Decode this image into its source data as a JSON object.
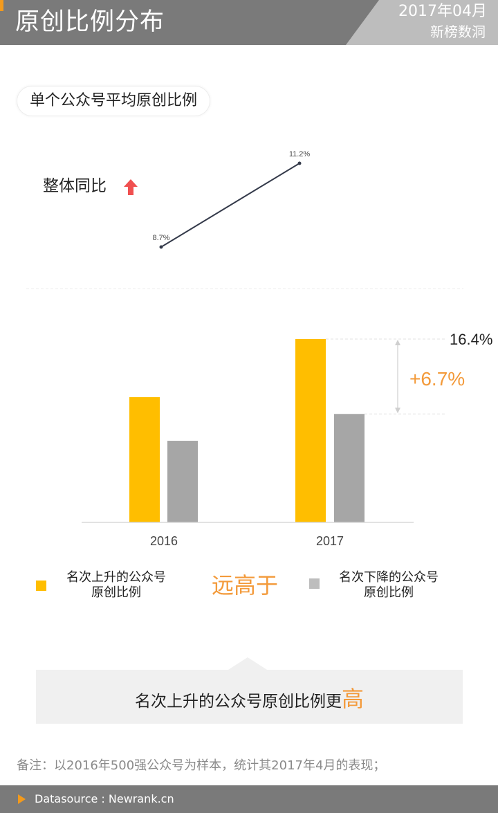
{
  "header": {
    "title": "原创比例分布",
    "date": "2017年04月",
    "brand": "新榜数洞"
  },
  "subtitle": "单个公众号平均原创比例",
  "yoy": {
    "label": "整体同比",
    "arrow_icon": "up-arrow-icon",
    "arrow_color": "#f05050"
  },
  "chart_data": [
    {
      "type": "line",
      "x": [
        "2016",
        "2017"
      ],
      "values": [
        8.7,
        11.2
      ],
      "labels": [
        "8.7%",
        "11.2%"
      ],
      "color": "#343a4a"
    },
    {
      "type": "bar",
      "categories": [
        "2016",
        "2017"
      ],
      "series": [
        {
          "name": "名次上升的公众号原创比例",
          "color": "#ffbe00",
          "values": [
            11.2,
            16.4
          ]
        },
        {
          "name": "名次下降的公众号原创比例",
          "color": "#a6a6a6",
          "values": [
            7.3,
            9.7
          ]
        }
      ],
      "annotations": {
        "top_value": "16.4%",
        "diff": "+6.7%"
      },
      "ylim": [
        0,
        16.4
      ]
    }
  ],
  "legend": {
    "up": {
      "line1": "名次上升的公众号",
      "line2": "原创比例",
      "color": "#ffbe00"
    },
    "compare": "远高于",
    "down": {
      "line1": "名次下降的公众号",
      "line2": "原创比例",
      "color": "#bdbdbd"
    }
  },
  "callout": {
    "text": "名次上升的公众号原创比例更",
    "highlight": "高"
  },
  "note": "备注：以2016年500强公众号为样本，统计其2017年4月的表现；",
  "footer": {
    "text": "Datasource : Newrank.cn"
  },
  "colors": {
    "accent": "#f39a1c",
    "header_bg": "#7a7a7a",
    "highlight": "#f39a3a"
  }
}
